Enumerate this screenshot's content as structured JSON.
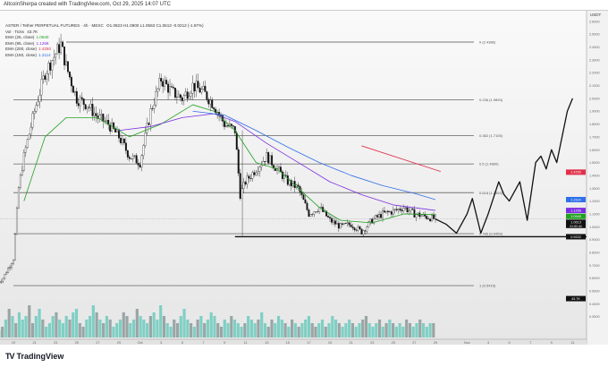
{
  "caption": "AltcoinSherpa created with TradingView.com, Oct 29, 2025 14:07 UTC",
  "legend": {
    "symbol": "ASTER / Tether PERPETUAL FUTURES · 4h · MEXC",
    "ohlc": "O1.0823 H1.0900 L1.0563 C1.0613 -0.0212 (-1.97%)",
    "volume": {
      "label": "Vol · Ticks",
      "value": "43.7K"
    },
    "emas": [
      {
        "label": "EMA (25, close)",
        "value": "1.0940",
        "color": "#22a122"
      },
      {
        "label": "EMA (95, close)",
        "value": "1.1268",
        "color": "#7b2fe0"
      },
      {
        "label": "EMA (200, close)",
        "value": "1.4250",
        "color": "#e0304a"
      },
      {
        "label": "EMA (150, close)",
        "value": "1.2114",
        "color": "#2f6fe8"
      }
    ]
  },
  "price_axis": {
    "currency": "USDT",
    "labels": [
      "2.6000",
      "2.5000",
      "2.4000",
      "2.3000",
      "2.2000",
      "2.1000",
      "2.0000",
      "1.9000",
      "1.8000",
      "1.7000",
      "1.6000",
      "1.5000",
      "1.4000",
      "1.3000",
      "1.2000",
      "1.1000",
      "1.0000",
      "0.9000",
      "0.8000",
      "0.7000",
      "0.6000",
      "0.5000",
      "0.4000",
      "0.3000"
    ],
    "badges": [
      {
        "price": 1.425,
        "text": "1.4250",
        "color": "#e0304a"
      },
      {
        "price": 1.2114,
        "text": "1.2114",
        "color": "#2f6fe8"
      },
      {
        "price": 1.1268,
        "text": "1.1268",
        "color": "#7b2fe0"
      },
      {
        "price": 1.094,
        "text": "1.0940",
        "color": "#22a122"
      },
      {
        "price": 1.0613,
        "text": "1.0613",
        "sub": "01:52:44",
        "color": "#111111"
      },
      {
        "price": 0.9222,
        "text": "0.9222",
        "color": "#111111"
      },
      {
        "price": 0.44,
        "text": "43.7K",
        "color": "#111111"
      }
    ]
  },
  "time_axis": {
    "labels": [
      {
        "day": 0,
        "text": "19"
      },
      {
        "day": 2,
        "text": "21"
      },
      {
        "day": 4,
        "text": "23"
      },
      {
        "day": 6,
        "text": "25"
      },
      {
        "day": 8,
        "text": "27"
      },
      {
        "day": 10,
        "text": "29"
      },
      {
        "day": 12,
        "text": "Oct"
      },
      {
        "day": 14,
        "text": "3"
      },
      {
        "day": 16,
        "text": "5"
      },
      {
        "day": 18,
        "text": "7"
      },
      {
        "day": 20,
        "text": "9"
      },
      {
        "day": 22,
        "text": "11"
      },
      {
        "day": 24,
        "text": "13"
      },
      {
        "day": 26,
        "text": "15"
      },
      {
        "day": 28,
        "text": "17"
      },
      {
        "day": 30,
        "text": "19"
      },
      {
        "day": 32,
        "text": "21"
      },
      {
        "day": 34,
        "text": "23"
      },
      {
        "day": 36,
        "text": "25"
      },
      {
        "day": 38,
        "text": "27"
      },
      {
        "day": 40,
        "text": "29"
      },
      {
        "day": 43,
        "text": "Nov"
      },
      {
        "day": 45,
        "text": "3"
      },
      {
        "day": 47,
        "text": "5"
      },
      {
        "day": 49,
        "text": "7"
      },
      {
        "day": 51,
        "text": "9"
      },
      {
        "day": 53,
        "text": "11"
      }
    ]
  },
  "fib_levels": [
    {
      "ratio": "0",
      "price": 2.4386,
      "label": "0 (2.4386)",
      "start_day": 5
    },
    {
      "ratio": "0.236",
      "price": 1.9893,
      "label": "0.236 (1.9893)",
      "start_day": 0
    },
    {
      "ratio": "0.382",
      "price": 1.7105,
      "label": "0.382 (1.7105)",
      "start_day": 0
    },
    {
      "ratio": "0.5",
      "price": 1.489,
      "label": "0.5 (1.4890)",
      "start_day": 0
    },
    {
      "ratio": "0.618",
      "price": 1.2653,
      "label": "0.618 (1.2653)",
      "start_day": 0
    },
    {
      "ratio": "0.786",
      "price": 0.9459,
      "label": "0.786 (0.9459)",
      "start_day": 0
    },
    {
      "ratio": "1",
      "price": 0.5415,
      "label": "1 (0.5415)",
      "start_day": 0
    }
  ],
  "chart_data": {
    "type": "candlestick",
    "price_path": [
      [
        -1.5,
        0.56
      ],
      [
        -1,
        0.6
      ],
      [
        0,
        0.75
      ],
      [
        0.5,
        1.3
      ],
      [
        1,
        1.55
      ],
      [
        2,
        1.9
      ],
      [
        3,
        2.2
      ],
      [
        4,
        2.35
      ],
      [
        4.5,
        2.42
      ],
      [
        5,
        2.25
      ],
      [
        6,
        2.0
      ],
      [
        7,
        1.95
      ],
      [
        8,
        1.85
      ],
      [
        9,
        1.8
      ],
      [
        10,
        1.7
      ],
      [
        11,
        1.55
      ],
      [
        12,
        1.5
      ],
      [
        13,
        1.9
      ],
      [
        14,
        2.15
      ],
      [
        15,
        2.05
      ],
      [
        16,
        2.0
      ],
      [
        17,
        2.1
      ],
      [
        18,
        2.05
      ],
      [
        19,
        1.95
      ],
      [
        20,
        1.8
      ],
      [
        21,
        1.75
      ],
      [
        21.5,
        1.25
      ],
      [
        22,
        1.35
      ],
      [
        23,
        1.45
      ],
      [
        24,
        1.55
      ],
      [
        25,
        1.45
      ],
      [
        26,
        1.35
      ],
      [
        27,
        1.3
      ],
      [
        28,
        1.1
      ],
      [
        29,
        1.15
      ],
      [
        30,
        1.05
      ],
      [
        31,
        1.0
      ],
      [
        32,
        1.02
      ],
      [
        33,
        0.96
      ],
      [
        34,
        1.05
      ],
      [
        35,
        1.1
      ],
      [
        36,
        1.12
      ],
      [
        37,
        1.15
      ],
      [
        38,
        1.1
      ],
      [
        39,
        1.08
      ],
      [
        40,
        1.06
      ]
    ],
    "ema25": [
      [
        1,
        1.2
      ],
      [
        3,
        1.7
      ],
      [
        5,
        1.85
      ],
      [
        8,
        1.85
      ],
      [
        11,
        1.7
      ],
      [
        14,
        1.8
      ],
      [
        17,
        1.95
      ],
      [
        19,
        1.9
      ],
      [
        21,
        1.75
      ],
      [
        23,
        1.5
      ],
      [
        25,
        1.45
      ],
      [
        27,
        1.3
      ],
      [
        29,
        1.15
      ],
      [
        31,
        1.05
      ],
      [
        34,
        1.03
      ],
      [
        37,
        1.1
      ],
      [
        40,
        1.094
      ]
    ],
    "ema95": [
      [
        10,
        1.75
      ],
      [
        13,
        1.78
      ],
      [
        16,
        1.85
      ],
      [
        19,
        1.88
      ],
      [
        21,
        1.82
      ],
      [
        24,
        1.65
      ],
      [
        27,
        1.5
      ],
      [
        30,
        1.35
      ],
      [
        33,
        1.25
      ],
      [
        36,
        1.17
      ],
      [
        40,
        1.127
      ]
    ],
    "ema150": [
      [
        17,
        1.9
      ],
      [
        20,
        1.87
      ],
      [
        23,
        1.75
      ],
      [
        26,
        1.62
      ],
      [
        29,
        1.5
      ],
      [
        32,
        1.4
      ],
      [
        35,
        1.32
      ],
      [
        38,
        1.26
      ],
      [
        40,
        1.211
      ]
    ],
    "ema200_segment": [
      [
        33,
        1.63
      ],
      [
        40.5,
        1.43
      ]
    ],
    "projection": [
      [
        40,
        1.06
      ],
      [
        41,
        1.02
      ],
      [
        42,
        0.95
      ],
      [
        43,
        1.1
      ],
      [
        43.5,
        1.22
      ],
      [
        44.3,
        0.95
      ],
      [
        45,
        1.1
      ],
      [
        46,
        1.35
      ],
      [
        46.5,
        1.25
      ],
      [
        47,
        1.2
      ],
      [
        48,
        1.35
      ],
      [
        48.7,
        1.05
      ],
      [
        49.5,
        1.5
      ],
      [
        50,
        1.55
      ],
      [
        50.5,
        1.45
      ],
      [
        51,
        1.6
      ],
      [
        51.5,
        1.5
      ],
      [
        52.5,
        1.9
      ],
      [
        53,
        2.0
      ]
    ],
    "support_line": {
      "price": 0.9222,
      "start_day": 21
    },
    "current_price": 1.0613,
    "volume_k": [
      2,
      3,
      5,
      8,
      6,
      4,
      7,
      5,
      6,
      9,
      4,
      6,
      8,
      5,
      3,
      4,
      6,
      7,
      5,
      4,
      6,
      5,
      7,
      8,
      4,
      3,
      5,
      6,
      9,
      7,
      5,
      4,
      6,
      5,
      3,
      4,
      5,
      7,
      6,
      4,
      5,
      8,
      6,
      5,
      4,
      6,
      7,
      5,
      9,
      6,
      4,
      3,
      5,
      4,
      6,
      8,
      5,
      4,
      3,
      5,
      6,
      4,
      5,
      7,
      6,
      4,
      3,
      5,
      4,
      6,
      5,
      4,
      3,
      4,
      6,
      5,
      4,
      5,
      7,
      4,
      3,
      5,
      4,
      6,
      5,
      4,
      3,
      5,
      4,
      3,
      4,
      5,
      6,
      4,
      3,
      4,
      5,
      3,
      4,
      6,
      5,
      4,
      3,
      4,
      5,
      4,
      3,
      4,
      5,
      6,
      4,
      3,
      4,
      5,
      3,
      4,
      5,
      4,
      3,
      4,
      3,
      5,
      4,
      3,
      4,
      5,
      4,
      3,
      4,
      4
    ]
  },
  "footer": {
    "brand": "TradingView"
  }
}
